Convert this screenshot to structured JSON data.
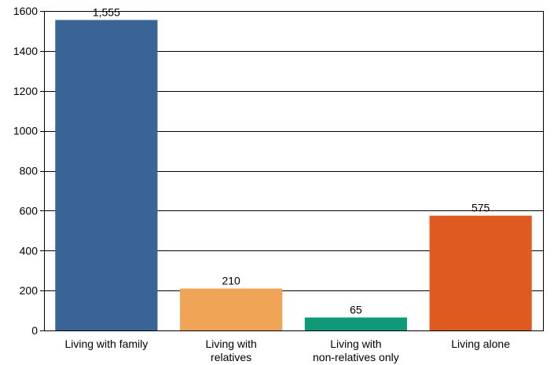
{
  "chart_data": {
    "type": "bar",
    "title": "",
    "xlabel": "",
    "ylabel": "",
    "categories": [
      [
        "Living with family"
      ],
      [
        "Living with",
        "relatives"
      ],
      [
        "Living with",
        "non-relatives only"
      ],
      [
        "Living alone"
      ]
    ],
    "values": [
      1555,
      210,
      65,
      575
    ],
    "data_labels": [
      "1,555",
      "210",
      "65",
      "575"
    ],
    "colors": [
      "#3a6496",
      "#f0a455",
      "#0e9a78",
      "#de5a21"
    ],
    "ylim": [
      0,
      1600
    ],
    "yticks": [
      0,
      200,
      400,
      600,
      800,
      1000,
      1200,
      1400,
      1600
    ],
    "grid": true,
    "legend": "none"
  }
}
